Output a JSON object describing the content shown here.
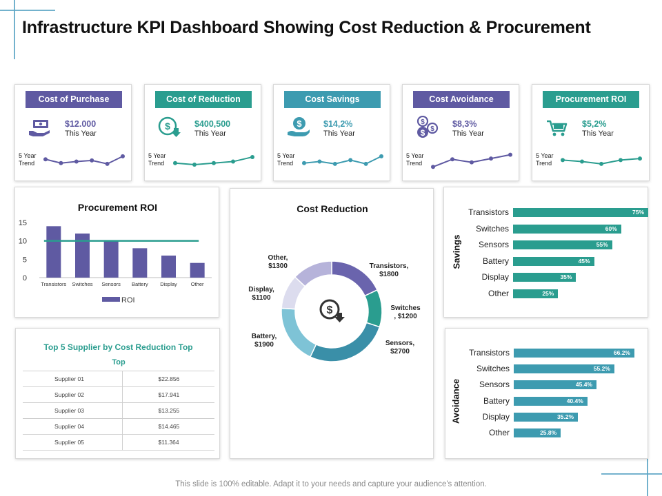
{
  "title": "Infrastructure KPI Dashboard Showing Cost Reduction & Procurement",
  "kpis": [
    {
      "label": "Cost of Purchase",
      "value": "$12.000",
      "sub": "This Year",
      "trend_label": "5 Year Trend",
      "color": "#5f5aa2",
      "icon": "money-hand-icon",
      "trend": [
        3.0,
        2.0,
        2.4,
        2.7,
        1.8,
        3.8
      ]
    },
    {
      "label": "Cost of Reduction",
      "value": "$400,500",
      "sub": "This Year",
      "trend_label": "5 Year Trend",
      "color": "#2a9d8f",
      "icon": "dollar-down-icon",
      "trend": [
        2.0,
        1.6,
        2.0,
        2.4,
        3.6
      ]
    },
    {
      "label": "Cost Savings",
      "value": "$14,2%",
      "sub": "This Year",
      "trend_label": "5 Year Trend",
      "color": "#3d9bb0",
      "icon": "dollar-hand-icon",
      "trend": [
        2.0,
        2.4,
        1.8,
        2.8,
        1.8,
        3.8
      ]
    },
    {
      "label": "Cost Avoidance",
      "value": "$8,3%",
      "sub": "This Year",
      "trend_label": "5 Year Trend",
      "color": "#5f5aa2",
      "icon": "coins-icon",
      "trend": [
        1.0,
        3.0,
        2.2,
        3.2,
        4.2
      ]
    },
    {
      "label": "Procurement ROI",
      "value": "$5,2%",
      "sub": "This Year",
      "trend_label": "5 Year Trend",
      "color": "#2a9d8f",
      "icon": "cart-icon",
      "trend": [
        2.8,
        2.4,
        1.8,
        2.8,
        3.2
      ]
    }
  ],
  "colors": {
    "purple": "#5f5aa2",
    "teal": "#2a9d8f",
    "blue": "#3d9bb0"
  },
  "suppliers": {
    "title": "Top 5 Supplier by Cost Reduction Top",
    "header": "Top",
    "rows": [
      {
        "name": "Supplier 01",
        "value": "$22.856"
      },
      {
        "name": "Supplier 02",
        "value": "$17.941"
      },
      {
        "name": "Supplier 03",
        "value": "$13.255"
      },
      {
        "name": "Supplier 04",
        "value": "$14.465"
      },
      {
        "name": "Supplier 05",
        "value": "$11.364"
      }
    ]
  },
  "chart_data": [
    {
      "type": "bar",
      "title": "Procurement ROI",
      "categories": [
        "Transistors",
        "Switches",
        "Sensors",
        "Battery",
        "Display",
        "Other"
      ],
      "series": [
        {
          "name": "ROI",
          "values": [
            14,
            12,
            10,
            8,
            6,
            4
          ]
        }
      ],
      "target_line": 10,
      "ylim": [
        0,
        15
      ],
      "yticks": [
        0,
        5,
        10,
        15
      ],
      "color": "#5f5aa2",
      "line_color": "#2a9d8f"
    },
    {
      "type": "pie",
      "title": "Cost Reduction",
      "categories": [
        "Transistors",
        "Switches",
        "Sensors",
        "Battery",
        "Display",
        "Other"
      ],
      "values": [
        1800,
        1200,
        2700,
        1900,
        1100,
        1300
      ],
      "labels": [
        [
          "Transistors,",
          "$1800"
        ],
        [
          "Switches",
          ", $1200"
        ],
        [
          "Sensors,",
          "$2700"
        ],
        [
          "Battery,",
          "$1900"
        ],
        [
          "Display,",
          "$1100"
        ],
        [
          "Other,",
          "$1300"
        ]
      ],
      "colors": [
        "#6a64ad",
        "#2a9d8f",
        "#3a8fa8",
        "#7ec3d6",
        "#dcdcee",
        "#b6b3da"
      ]
    },
    {
      "type": "bar",
      "orientation": "horizontal",
      "axis_label": "Savings",
      "categories": [
        "Transistors",
        "Switches",
        "Sensors",
        "Battery",
        "Display",
        "Other"
      ],
      "values": [
        75,
        60,
        55,
        45,
        35,
        25
      ],
      "value_labels": [
        "75%",
        "60%",
        "55%",
        "45%",
        "35%",
        "25%"
      ],
      "max": 75,
      "color": "#2a9d8f"
    },
    {
      "type": "bar",
      "orientation": "horizontal",
      "axis_label": "Avoidance",
      "categories": [
        "Transistors",
        "Switches",
        "Sensors",
        "Battery",
        "Display",
        "Other"
      ],
      "values": [
        66.2,
        55.2,
        45.4,
        40.4,
        35.2,
        25.8
      ],
      "value_labels": [
        "66.2%",
        "55.2%",
        "45.4%",
        "40.4%",
        "35.2%",
        "25.8%"
      ],
      "max": 66.2,
      "color": "#3d9bb0"
    }
  ],
  "footer": "This slide is 100% editable. Adapt it to your needs and capture your audience's attention."
}
